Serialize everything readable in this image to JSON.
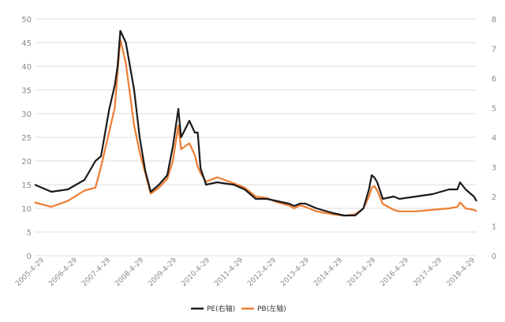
{
  "chart_data": {
    "type": "line",
    "x": [
      "2005-4-29",
      "2005-10-29",
      "2006-4-29",
      "2006-10-29",
      "2007-2-28",
      "2007-4-29",
      "2007-7-29",
      "2007-9-29",
      "2007-10-29",
      "2007-11-29",
      "2008-1-29",
      "2008-4-29",
      "2008-6-29",
      "2008-8-29",
      "2008-10-29",
      "2009-1-29",
      "2009-4-29",
      "2009-6-29",
      "2009-8-29",
      "2009-9-29",
      "2009-12-29",
      "2010-2-28",
      "2010-3-29",
      "2010-4-29",
      "2010-6-29",
      "2010-10-29",
      "2011-4-29",
      "2011-8-29",
      "2011-12-29",
      "2012-4-29",
      "2012-8-29",
      "2012-12-29",
      "2013-2-28",
      "2013-4-29",
      "2013-6-29",
      "2013-10-29",
      "2014-4-29",
      "2014-8-29",
      "2014-12-29",
      "2015-3-29",
      "2015-5-29",
      "2015-6-29",
      "2015-7-29",
      "2015-8-29",
      "2015-10-29",
      "2016-2-28",
      "2016-4-29",
      "2016-10-29",
      "2017-4-29",
      "2017-10-29",
      "2018-1-29",
      "2018-2-28",
      "2018-4-29",
      "2018-7-29",
      "2018-8-29"
    ],
    "series": [
      {
        "name": "PE(右轴)",
        "axis": "left",
        "values": [
          15,
          13.5,
          14,
          16,
          20,
          21,
          31,
          36,
          40,
          47.5,
          45,
          35,
          25,
          18,
          13.5,
          15,
          17,
          23,
          31,
          25,
          28.5,
          26,
          26,
          18.5,
          15,
          15.5,
          15,
          14,
          12,
          12,
          11.5,
          11,
          10.5,
          11,
          11,
          10,
          9,
          8.5,
          8.5,
          10,
          14,
          17,
          16.5,
          15.5,
          12,
          12.5,
          12,
          12.5,
          13,
          14,
          14,
          15.5,
          14,
          12.5,
          11.5
        ]
      },
      {
        "name": "PB(左轴)",
        "axis": "right",
        "values": [
          1.8,
          1.65,
          1.85,
          2.2,
          2.3,
          3.0,
          4.2,
          5.0,
          6.2,
          7.3,
          6.5,
          4.4,
          3.5,
          2.8,
          2.1,
          2.3,
          2.6,
          3.2,
          4.4,
          3.6,
          3.8,
          3.4,
          3.0,
          2.8,
          2.5,
          2.65,
          2.45,
          2.3,
          2.0,
          1.95,
          1.8,
          1.7,
          1.6,
          1.7,
          1.65,
          1.5,
          1.4,
          1.35,
          1.4,
          1.6,
          2.0,
          2.3,
          2.35,
          2.2,
          1.75,
          1.55,
          1.5,
          1.5,
          1.55,
          1.6,
          1.65,
          1.8,
          1.6,
          1.55,
          1.5
        ]
      }
    ],
    "y_left": {
      "ticks": [
        "0",
        "5",
        "10",
        "15",
        "20",
        "25",
        "30",
        "35",
        "40",
        "45",
        "50"
      ],
      "ylim": [
        0,
        50
      ]
    },
    "y_right": {
      "ticks": [
        "0",
        "1",
        "2",
        "3",
        "4",
        "5",
        "6",
        "7",
        "8"
      ],
      "ylim": [
        0,
        8
      ]
    },
    "x_tick_labels": [
      "2005-4-29",
      "2006-4-29",
      "2007-4-29",
      "2008-4-29",
      "2009-4-29",
      "2010-4-29",
      "2011-4-29",
      "2012-4-29",
      "2013-4-29",
      "2014-4-29",
      "2015-4-29",
      "2016-4-29",
      "2017-4-29",
      "2018-4-29"
    ],
    "legend": {
      "placement": "bottom-center"
    },
    "colors": {
      "pe": "#1a1a1a",
      "pb": "#ed7d31",
      "grid": "#dcdcdc"
    },
    "grid": true
  }
}
